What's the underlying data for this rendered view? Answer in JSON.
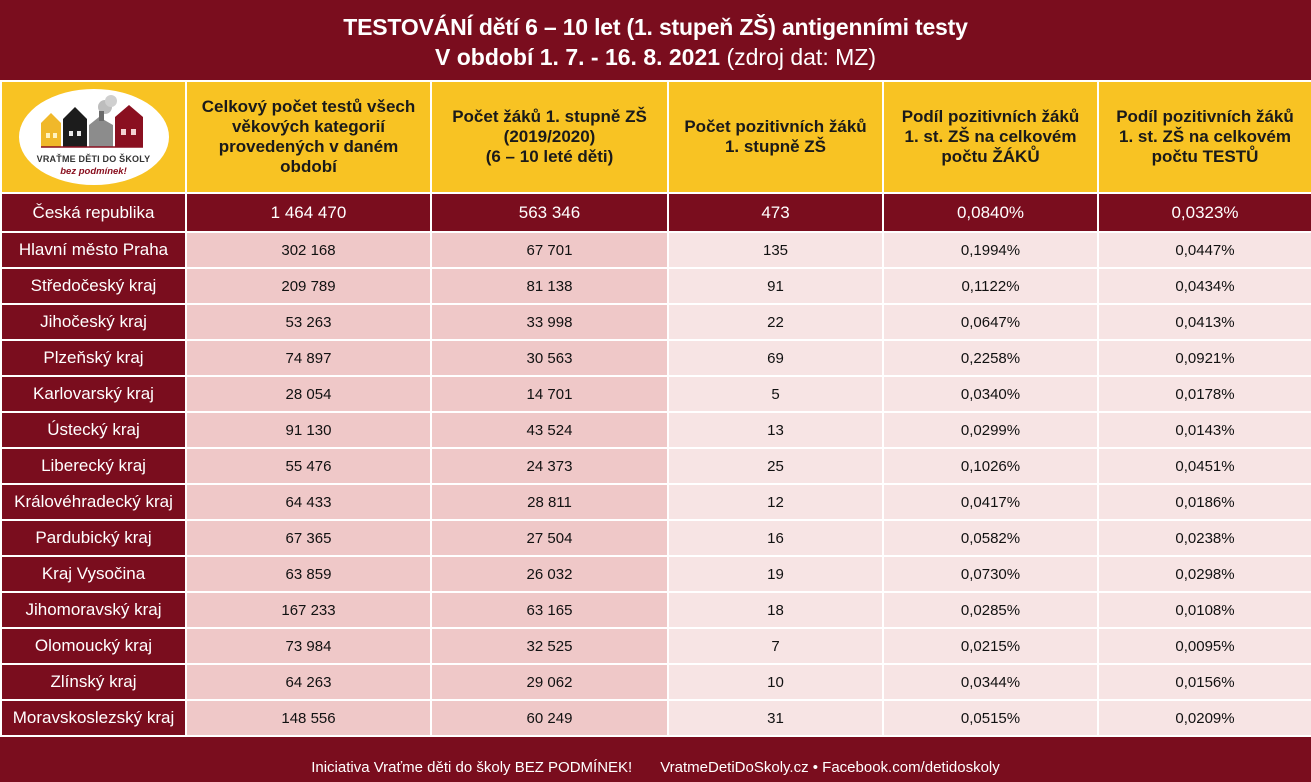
{
  "title": {
    "line1": "TESTOVÁNÍ dětí 6 – 10 let (1. stupeň ZŠ) antigenními testy",
    "line2_bold": "V období 1. 7. - 16. 8. 2021",
    "line2_rest": " (zdroj dat: MZ)"
  },
  "logo": {
    "line1": "VRAŤME DĚTI DO ŠKOLY",
    "line2": "bez podmínek!"
  },
  "headers": [
    "Celkový počet testů všech věkových kategorií provedených v daném období",
    "Počet žáků 1. stupně ZŠ (2019/2020) (6 – 10 leté děti)",
    "Počet pozitivních žáků 1. stupně ZŠ",
    "Podíl pozitivních žáků 1. st. ZŠ na celkovém počtu ŽÁKŮ",
    "Podíl pozitivních žáků 1. st. ZŠ na celkovém počtu TESTŮ"
  ],
  "header_lines": [
    [
      "Celkový počet testů všech",
      "věkových kategorií",
      "provedených v daném",
      "období"
    ],
    [
      "Počet žáků 1. stupně ZŠ",
      "(2019/2020)",
      "(6 – 10 leté děti)"
    ],
    [
      "Počet pozitivních žáků",
      "1. stupně ZŠ"
    ],
    [
      "Podíl pozitivních žáků",
      "1. st. ZŠ na celkovém",
      "počtu ŽÁKŮ"
    ],
    [
      "Podíl pozitivních žáků",
      "1. st. ZŠ na celkovém",
      "počtu TESTŮ"
    ]
  ],
  "total_row": {
    "region": "Česká republika",
    "tests": "1 464 470",
    "pupils": "563 346",
    "positive": "473",
    "share_pupils": "0,0840%",
    "share_tests": "0,0323%"
  },
  "rows": [
    {
      "region": "Hlavní město Praha",
      "tests": "302 168",
      "pupils": "67 701",
      "positive": "135",
      "share_pupils": "0,1994%",
      "share_tests": "0,0447%"
    },
    {
      "region": "Středočeský kraj",
      "tests": "209 789",
      "pupils": "81 138",
      "positive": "91",
      "share_pupils": "0,1122%",
      "share_tests": "0,0434%"
    },
    {
      "region": "Jihočeský kraj",
      "tests": "53 263",
      "pupils": "33 998",
      "positive": "22",
      "share_pupils": "0,0647%",
      "share_tests": "0,0413%"
    },
    {
      "region": "Plzeňský kraj",
      "tests": "74 897",
      "pupils": "30 563",
      "positive": "69",
      "share_pupils": "0,2258%",
      "share_tests": "0,0921%"
    },
    {
      "region": "Karlovarský kraj",
      "tests": "28 054",
      "pupils": "14 701",
      "positive": "5",
      "share_pupils": "0,0340%",
      "share_tests": "0,0178%"
    },
    {
      "region": "Ústecký kraj",
      "tests": "91 130",
      "pupils": "43 524",
      "positive": "13",
      "share_pupils": "0,0299%",
      "share_tests": "0,0143%"
    },
    {
      "region": "Liberecký kraj",
      "tests": "55 476",
      "pupils": "24 373",
      "positive": "25",
      "share_pupils": "0,1026%",
      "share_tests": "0,0451%"
    },
    {
      "region": "Královéhradecký kraj",
      "tests": "64 433",
      "pupils": "28 811",
      "positive": "12",
      "share_pupils": "0,0417%",
      "share_tests": "0,0186%"
    },
    {
      "region": "Pardubický kraj",
      "tests": "67 365",
      "pupils": "27 504",
      "positive": "16",
      "share_pupils": "0,0582%",
      "share_tests": "0,0238%"
    },
    {
      "region": "Kraj Vysočina",
      "tests": "63 859",
      "pupils": "26 032",
      "positive": "19",
      "share_pupils": "0,0730%",
      "share_tests": "0,0298%"
    },
    {
      "region": "Jihomoravský kraj",
      "tests": "167 233",
      "pupils": "63 165",
      "positive": "18",
      "share_pupils": "0,0285%",
      "share_tests": "0,0108%"
    },
    {
      "region": "Olomoucký kraj",
      "tests": "73 984",
      "pupils": "32 525",
      "positive": "7",
      "share_pupils": "0,0215%",
      "share_tests": "0,0095%"
    },
    {
      "region": "Zlínský kraj",
      "tests": "64 263",
      "pupils": "29 062",
      "positive": "10",
      "share_pupils": "0,0344%",
      "share_tests": "0,0156%"
    },
    {
      "region": "Moravskoslezský kraj",
      "tests": "148 556",
      "pupils": "60 249",
      "positive": "31",
      "share_pupils": "0,0515%",
      "share_tests": "0,0209%"
    }
  ],
  "footer": {
    "left": "Iniciativa Vraťme děti do školy BEZ PODMÍNEK!",
    "right": "VratmeDetiDoSkoly.cz • Facebook.com/detidoskoly"
  },
  "colors": {
    "burgundy": "#7a0d1e",
    "header_yellow": "#f8c323",
    "pink_cell": "#efc8c8",
    "light_cell": "#f7e4e4"
  }
}
